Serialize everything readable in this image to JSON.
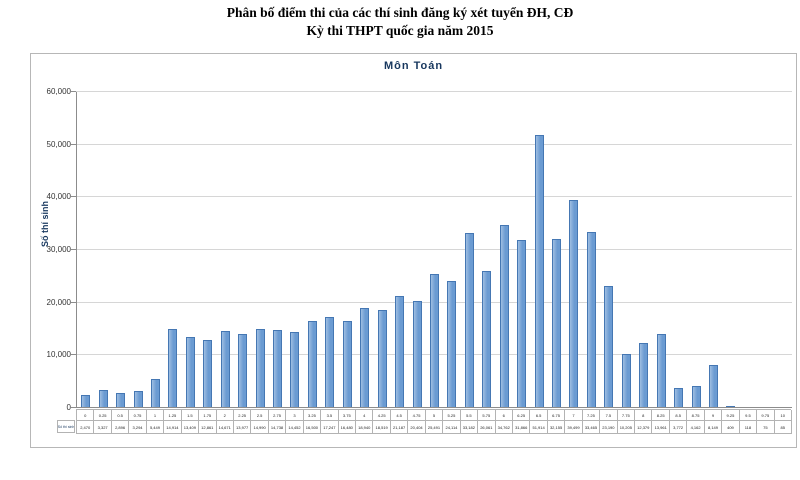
{
  "page": {
    "title_line1": "Phân bố điểm thi của các thí sinh đăng ký xét tuyển ĐH, CĐ",
    "title_line2": "Kỳ thi THPT quốc gia năm 2015"
  },
  "chart_data": {
    "type": "bar",
    "title": "Môn Toán",
    "ylabel": "Số thí sinh",
    "table_row_header": "Số thí sinh",
    "categories": [
      "0",
      "0.25",
      "0.5",
      "0.75",
      "1",
      "1.25",
      "1.5",
      "1.75",
      "2",
      "2.25",
      "2.5",
      "2.75",
      "3",
      "3.25",
      "3.5",
      "3.75",
      "4",
      "4.25",
      "4.5",
      "4.75",
      "5",
      "5.25",
      "5.5",
      "5.75",
      "6",
      "6.25",
      "6.5",
      "6.75",
      "7",
      "7.25",
      "7.5",
      "7.75",
      "8",
      "8.25",
      "8.5",
      "8.75",
      "9",
      "9.25",
      "9.5",
      "9.75",
      "10"
    ],
    "values": [
      2470,
      3327,
      2896,
      3294,
      5449,
      14914,
      13409,
      12861,
      14671,
      13977,
      14990,
      14738,
      14452,
      16500,
      17247,
      16480,
      18940,
      18519,
      21187,
      20404,
      25491,
      24114,
      33182,
      26061,
      34762,
      31866,
      51914,
      32155,
      39499,
      33465,
      23190,
      10205,
      12379,
      13961,
      3772,
      4162,
      8149,
      409,
      118,
      75,
      85
    ],
    "counts_formatted": [
      "2,470",
      "3,327",
      "2,896",
      "3,294",
      "5,449",
      "14,914",
      "13,409",
      "12,861",
      "14,671",
      "13,977",
      "14,990",
      "14,738",
      "14,452",
      "16,500",
      "17,247",
      "16,480",
      "18,940",
      "18,519",
      "21,187",
      "20,404",
      "25,491",
      "24,114",
      "33,182",
      "26,061",
      "34,762",
      "31,866",
      "51,914",
      "32,155",
      "39,499",
      "33,465",
      "23,190",
      "10,205",
      "12,379",
      "13,961",
      "3,772",
      "4,162",
      "8,149",
      "409",
      "118",
      "75",
      "85"
    ],
    "ylim": [
      0,
      60000
    ],
    "yticks": [
      "0",
      "10,000",
      "20,000",
      "30,000",
      "40,000",
      "50,000",
      "60,000"
    ],
    "grid": "horizontal",
    "legend": "none",
    "bar_color": "#6b9bd2",
    "bar_border_color": "#4577b3"
  }
}
